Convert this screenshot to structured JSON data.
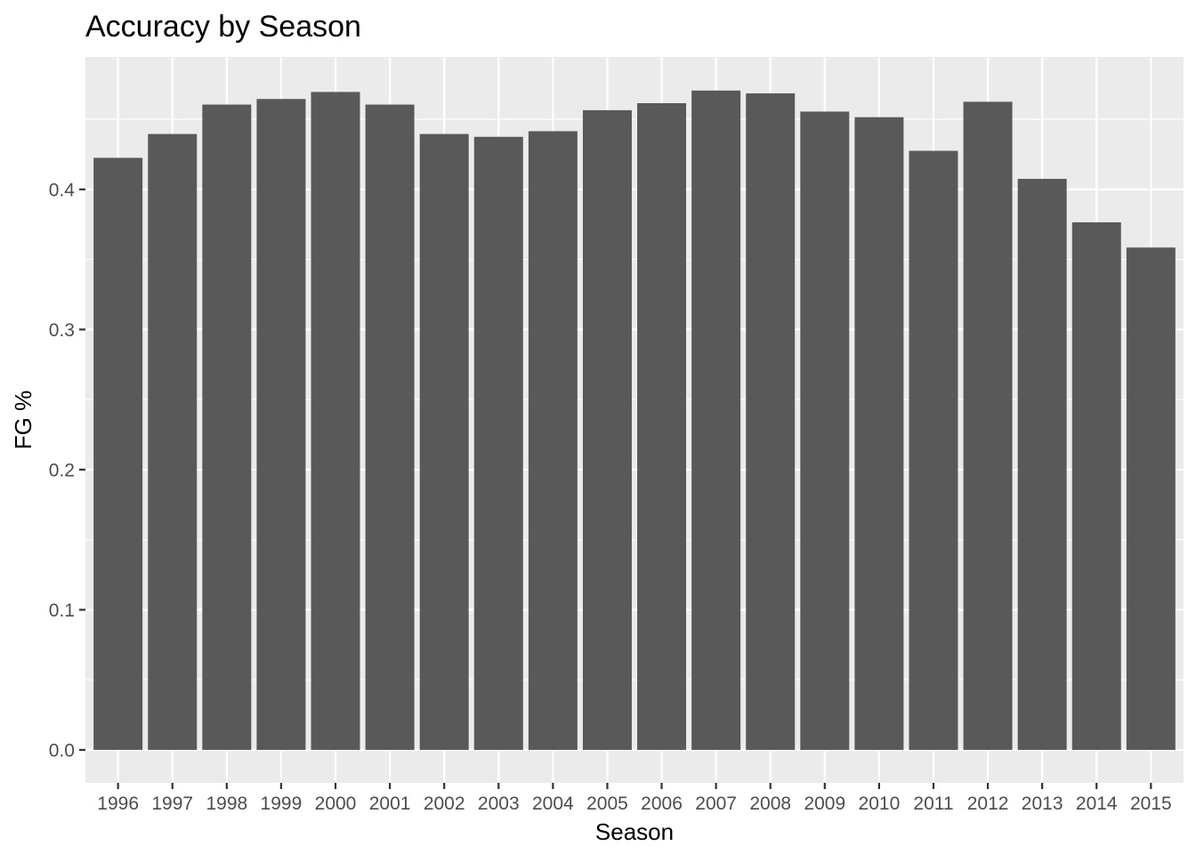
{
  "chart_data": {
    "type": "bar",
    "title": "Accuracy by Season",
    "xlabel": "Season",
    "ylabel": "FG %",
    "categories": [
      "1996",
      "1997",
      "1998",
      "1999",
      "2000",
      "2001",
      "2002",
      "2003",
      "2004",
      "2005",
      "2006",
      "2007",
      "2008",
      "2009",
      "2010",
      "2011",
      "2012",
      "2013",
      "2014",
      "2015"
    ],
    "values": [
      0.4225,
      0.4395,
      0.4605,
      0.4645,
      0.4695,
      0.4605,
      0.4395,
      0.4375,
      0.4415,
      0.4565,
      0.4615,
      0.4705,
      0.4685,
      0.4555,
      0.4515,
      0.4275,
      0.4625,
      0.4075,
      0.3765,
      0.3585
    ],
    "y_ticks": [
      "0.0",
      "0.1",
      "0.2",
      "0.3",
      "0.4"
    ],
    "ylim": [
      -0.0235,
      0.4945
    ],
    "grid": true,
    "legend": "none",
    "colors": {
      "bar": "#595959",
      "panel": "#ebebeb",
      "grid": "#ffffff",
      "tick_text": "#4d4d4d",
      "tick_mark": "#333333"
    }
  }
}
